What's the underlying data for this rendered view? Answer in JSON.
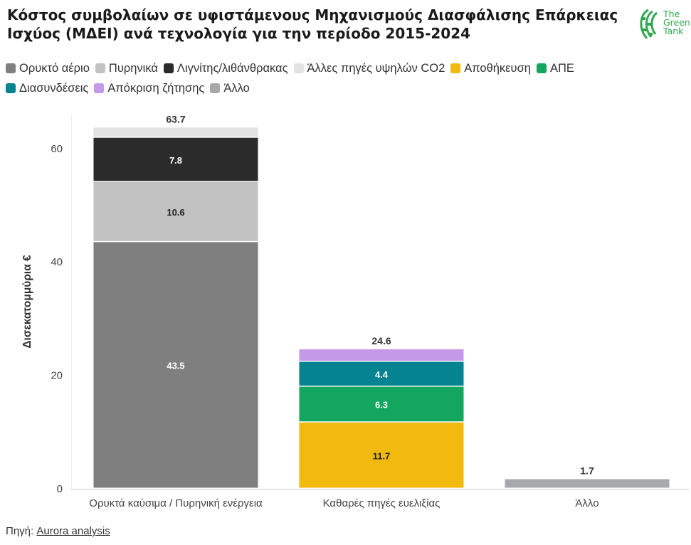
{
  "title_line1": "Κόστος συμβολαίων σε υφιστάμενους Μηχανισμούς Διασφάλισης Επάρκειας",
  "title_line2": "Ισχύος (ΜΔΕΙ) ανά τεχνολογία για την περίοδο 2015-2024",
  "logo": {
    "icon": "green-tank-logo-icon",
    "line1": "The",
    "line2": "Green",
    "line3": "Tank",
    "color": "#2fa84f"
  },
  "source": {
    "label": "Πηγή: ",
    "link_text": "Aurora analysis"
  },
  "chart_data": {
    "type": "bar",
    "stacked": true,
    "ylabel": "Δισεκατομμύρια €",
    "ylim": [
      0,
      66
    ],
    "yticks": [
      0,
      20,
      40,
      60
    ],
    "grid": false,
    "legend_position": "top",
    "categories": [
      "Ορυκτά καύσιμα / Πυρηνική ενέργεια",
      "Καθαρές πηγές ευελιξίας",
      "Άλλο"
    ],
    "totals": [
      63.7,
      24.6,
      1.7
    ],
    "series": [
      {
        "name": "Ορυκτό αέριο",
        "color": "#7f7f7f",
        "values": [
          43.5,
          0,
          0
        ],
        "label_color": "#ffffff",
        "labels": [
          "43.5",
          "",
          ""
        ]
      },
      {
        "name": "Πυρηνικά",
        "color": "#c2c2c2",
        "values": [
          10.6,
          0,
          0
        ],
        "label_color": "#222222",
        "labels": [
          "10.6",
          "",
          ""
        ]
      },
      {
        "name": "Λιγνίτης/λιθάνθρακας",
        "color": "#2b2b2b",
        "values": [
          7.8,
          0,
          0
        ],
        "label_color": "#ffffff",
        "labels": [
          "7.8",
          "",
          ""
        ]
      },
      {
        "name": "Άλλες πηγές υψηλών CO2",
        "color": "#e3e3e3",
        "values": [
          1.8,
          0,
          0
        ],
        "label_color": "#222222",
        "labels": [
          "",
          "",
          ""
        ]
      },
      {
        "name": "Αποθήκευση",
        "color": "#f2b90f",
        "values": [
          0,
          11.7,
          0
        ],
        "label_color": "#222222",
        "labels": [
          "",
          "11.7",
          ""
        ]
      },
      {
        "name": "ΑΠΕ",
        "color": "#13a65e",
        "values": [
          0,
          6.3,
          0
        ],
        "label_color": "#ffffff",
        "labels": [
          "",
          "6.3",
          ""
        ]
      },
      {
        "name": "Διασυνδέσεις",
        "color": "#058391",
        "values": [
          0,
          4.4,
          0
        ],
        "label_color": "#ffffff",
        "labels": [
          "",
          "4.4",
          ""
        ]
      },
      {
        "name": "Απόκριση ζήτησης",
        "color": "#c49ae8",
        "values": [
          0,
          2.2,
          0
        ],
        "label_color": "#222222",
        "labels": [
          "",
          "",
          ""
        ]
      },
      {
        "name": "Άλλο",
        "color": "#a7a9ad",
        "values": [
          0,
          0,
          1.7
        ],
        "label_color": "#222222",
        "labels": [
          "",
          "",
          ""
        ]
      }
    ]
  }
}
